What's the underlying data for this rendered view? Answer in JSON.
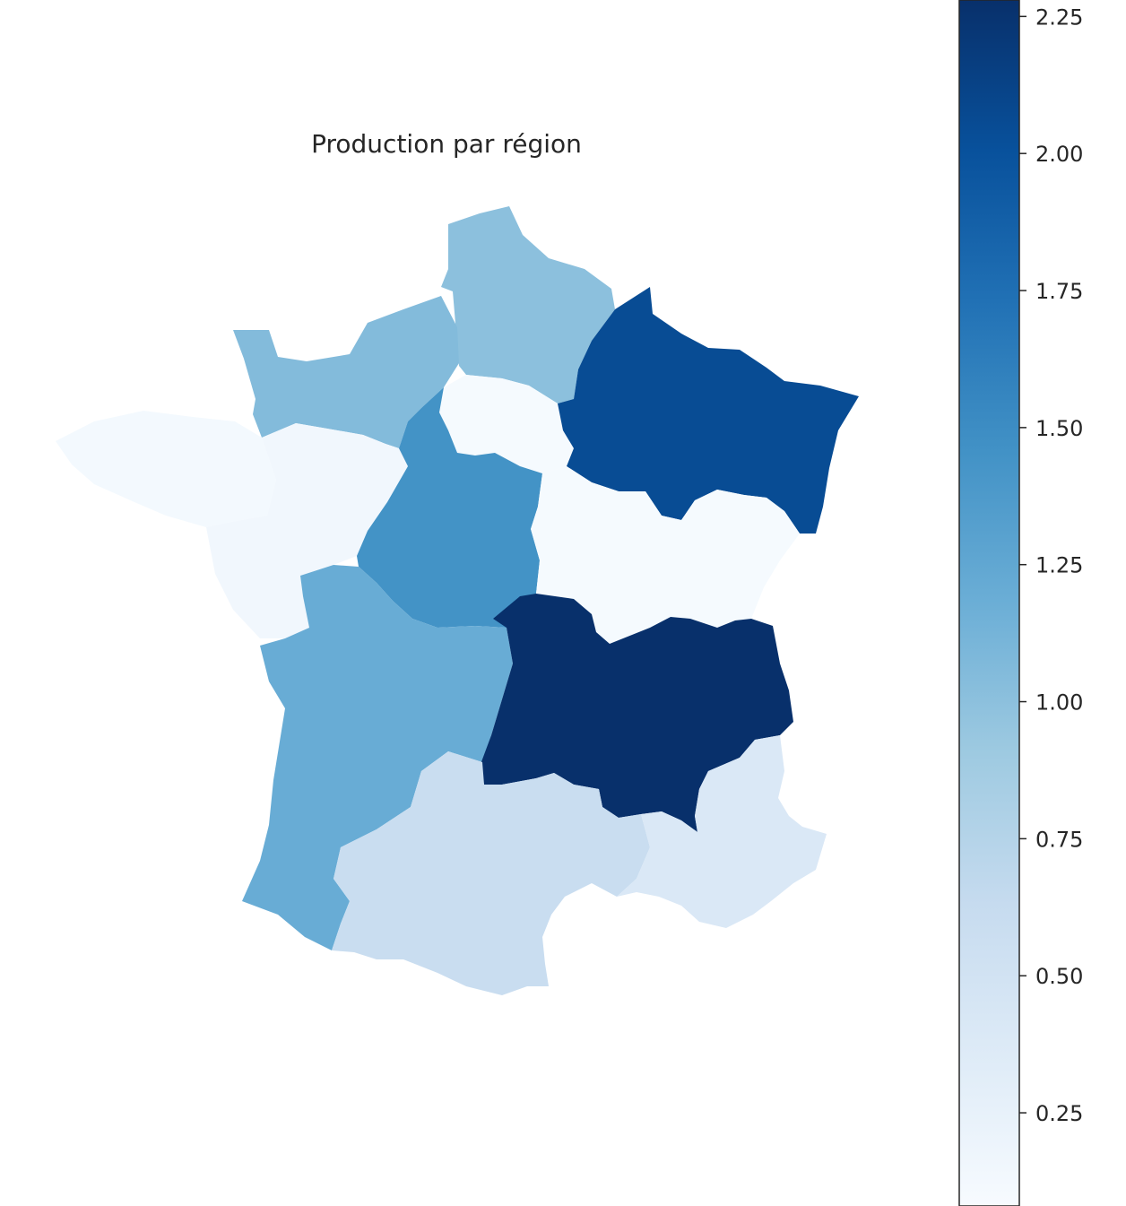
{
  "chart_data": {
    "type": "choropleth",
    "title": "Production par région",
    "colormap": "Blues",
    "colorbar": {
      "vmin": 0.08,
      "vmax": 2.28,
      "ticks": [
        0.25,
        0.5,
        0.75,
        1.0,
        1.25,
        1.5,
        1.75,
        2.0,
        2.25
      ],
      "tick_labels": [
        "0.25",
        "0.50",
        "0.75",
        "1.00",
        "1.25",
        "1.50",
        "1.75",
        "2.00",
        "2.25"
      ],
      "placement": "right"
    },
    "regions": [
      {
        "id": "hauts-de-france",
        "value": 1.0
      },
      {
        "id": "normandie",
        "value": 1.05
      },
      {
        "id": "bretagne",
        "value": 0.12
      },
      {
        "id": "pays-de-la-loire",
        "value": 0.15
      },
      {
        "id": "ile-de-france",
        "value": 0.1
      },
      {
        "id": "grand-est",
        "value": 2.05
      },
      {
        "id": "centre-val-de-loire",
        "value": 1.45
      },
      {
        "id": "bourgogne-franche-comte",
        "value": 0.1
      },
      {
        "id": "nouvelle-aquitaine",
        "value": 1.2
      },
      {
        "id": "auvergne-rhone-alpes",
        "value": 2.28
      },
      {
        "id": "occitanie",
        "value": 0.6
      },
      {
        "id": "provence-alpes-cote-d-azur",
        "value": 0.4
      }
    ]
  }
}
